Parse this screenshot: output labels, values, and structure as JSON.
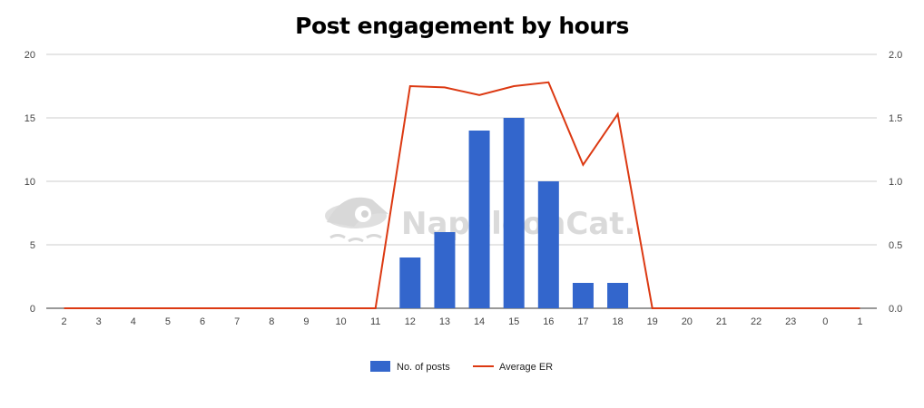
{
  "chart_data": {
    "type": "bar",
    "title": "Post engagement by hours",
    "categories": [
      "2",
      "3",
      "4",
      "5",
      "6",
      "7",
      "8",
      "9",
      "10",
      "11",
      "12",
      "13",
      "14",
      "15",
      "16",
      "17",
      "18",
      "19",
      "20",
      "21",
      "22",
      "23",
      "0",
      "1"
    ],
    "series": [
      {
        "name": "No. of posts",
        "type": "bar",
        "axis": "left",
        "color": "#3366cc",
        "values": [
          0,
          0,
          0,
          0,
          0,
          0,
          0,
          0,
          0,
          0,
          4,
          6,
          14,
          15,
          10,
          2,
          2,
          0,
          0,
          0,
          0,
          0,
          0,
          0
        ]
      },
      {
        "name": "Average ER",
        "type": "line",
        "axis": "right",
        "color": "#dc3912",
        "values": [
          0,
          0,
          0,
          0,
          0,
          0,
          0,
          0,
          0,
          0,
          1.75,
          1.74,
          1.68,
          1.75,
          1.78,
          1.13,
          1.53,
          0,
          0,
          0,
          0,
          0,
          0,
          0
        ]
      }
    ],
    "y_left": {
      "min": 0,
      "max": 20,
      "ticks": [
        "0",
        "5",
        "10",
        "15",
        "20"
      ]
    },
    "y_right": {
      "min": 0,
      "max": 2.0,
      "ticks": [
        "0.0",
        "0.5",
        "1.0",
        "1.5",
        "2.0"
      ]
    },
    "grid": true,
    "legend_position": "bottom"
  },
  "watermark": {
    "text": "NapoleonCat.",
    "icon": "napoleoncat-logo-icon"
  }
}
